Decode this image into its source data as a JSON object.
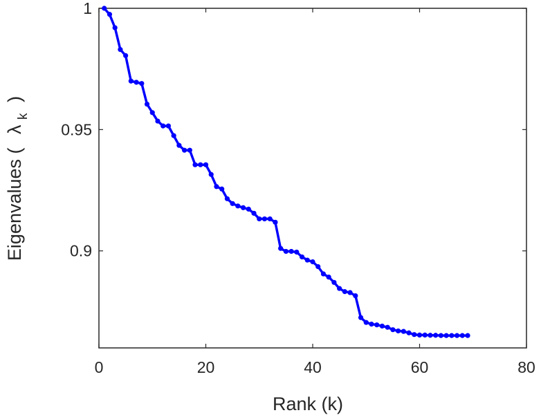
{
  "chart_data": {
    "type": "line",
    "xlabel": "Rank (k)",
    "ylabel_main": "Eigenvalues (",
    "ylabel_symbol": "λ",
    "ylabel_subscript": "k",
    "ylabel_close": ")",
    "xlim": [
      0,
      80
    ],
    "ylim": [
      0.86,
      1.0
    ],
    "xticks": [
      0,
      20,
      40,
      60,
      80
    ],
    "xtick_labels": [
      "0",
      "20",
      "40",
      "60",
      "80"
    ],
    "yticks": [
      0.9,
      0.95,
      1.0
    ],
    "ytick_labels": [
      "0.9",
      "0.95",
      "1"
    ],
    "grid": false,
    "series_color": "#0000ff",
    "series": [
      {
        "x": [
          1,
          2,
          3,
          4,
          5,
          6,
          7,
          8,
          9,
          10,
          11,
          12,
          13,
          14,
          15,
          16,
          17,
          18,
          19,
          20,
          21,
          22,
          23,
          24,
          25,
          26,
          27,
          28,
          29,
          30,
          31,
          32,
          33,
          34,
          35,
          36,
          37,
          38,
          39,
          40,
          41,
          42,
          43,
          44,
          45,
          46,
          47,
          48,
          49,
          50,
          51,
          52,
          53,
          54,
          55,
          56,
          57,
          58,
          59,
          60,
          61,
          62,
          63,
          64,
          65,
          66,
          67,
          68,
          69
        ],
        "values": [
          1.0,
          0.9975,
          0.992,
          0.983,
          0.9805,
          0.97,
          0.9695,
          0.969,
          0.9605,
          0.957,
          0.9535,
          0.9515,
          0.9515,
          0.9475,
          0.9435,
          0.9415,
          0.9415,
          0.9355,
          0.9355,
          0.9355,
          0.9315,
          0.9265,
          0.9255,
          0.9215,
          0.9195,
          0.9185,
          0.9178,
          0.9172,
          0.9155,
          0.9132,
          0.9132,
          0.9132,
          0.9118,
          0.901,
          0.8998,
          0.8998,
          0.8995,
          0.8975,
          0.8962,
          0.8955,
          0.8935,
          0.8905,
          0.8892,
          0.887,
          0.8845,
          0.8832,
          0.8828,
          0.8815,
          0.8725,
          0.8705,
          0.8698,
          0.8695,
          0.869,
          0.8685,
          0.8675,
          0.867,
          0.8668,
          0.8662,
          0.8655,
          0.8653,
          0.8653,
          0.8652,
          0.8652,
          0.8651,
          0.8651,
          0.8651,
          0.8651,
          0.8651,
          0.8651
        ]
      }
    ]
  }
}
